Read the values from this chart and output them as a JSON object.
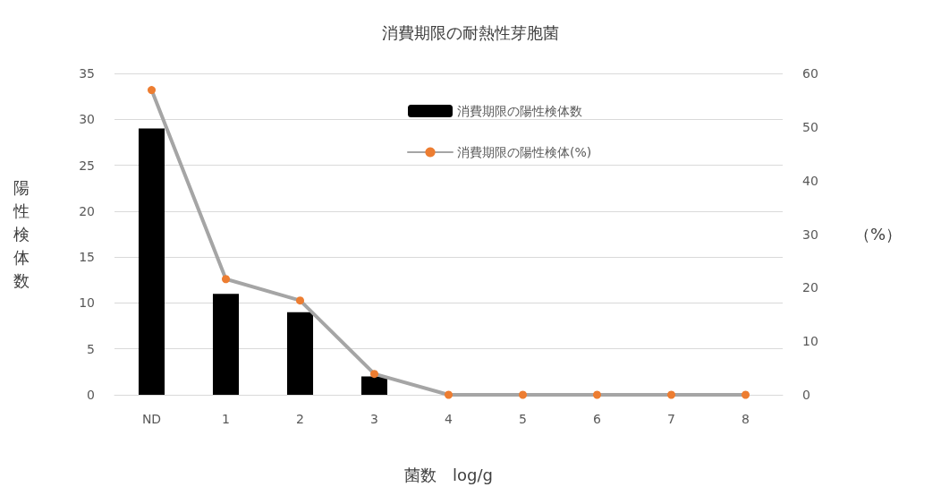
{
  "chart_data": {
    "type": "bar",
    "title": "消費期限の耐熱性芽胞菌",
    "xlabel": "菌数　log/g",
    "ylabel": "陽性検体数",
    "y2label": "（%）",
    "categories": [
      "ND",
      "1",
      "2",
      "3",
      "4",
      "5",
      "6",
      "7",
      "8"
    ],
    "series": [
      {
        "name": "消費期限の陽性検体数",
        "color": "#000000",
        "values": [
          29,
          11,
          9,
          2,
          0,
          0,
          0,
          0,
          0
        ]
      },
      {
        "name": "消費期限の陽性検体(%)",
        "type": "line",
        "axis": "y2",
        "color": "#a5a5a5",
        "colors": [
          "#ed7d31",
          "#ed7d31",
          "#ed7d31",
          "#ed7d31",
          "#ed7d31",
          "#ed7d31",
          "#ed7d31",
          "#ed7d31",
          "#ed7d31"
        ],
        "marker": "circle",
        "values": [
          56.9,
          21.6,
          17.6,
          3.9,
          0,
          0,
          0,
          0,
          0
        ]
      }
    ],
    "ylim": [
      0,
      35
    ],
    "yticks": [
      0,
      5,
      10,
      15,
      20,
      25,
      30,
      35
    ],
    "y2lim": [
      0,
      60
    ],
    "y2ticks": [
      0,
      10,
      20,
      30,
      40,
      50,
      60
    ],
    "grid": "y",
    "legend": "top right"
  }
}
